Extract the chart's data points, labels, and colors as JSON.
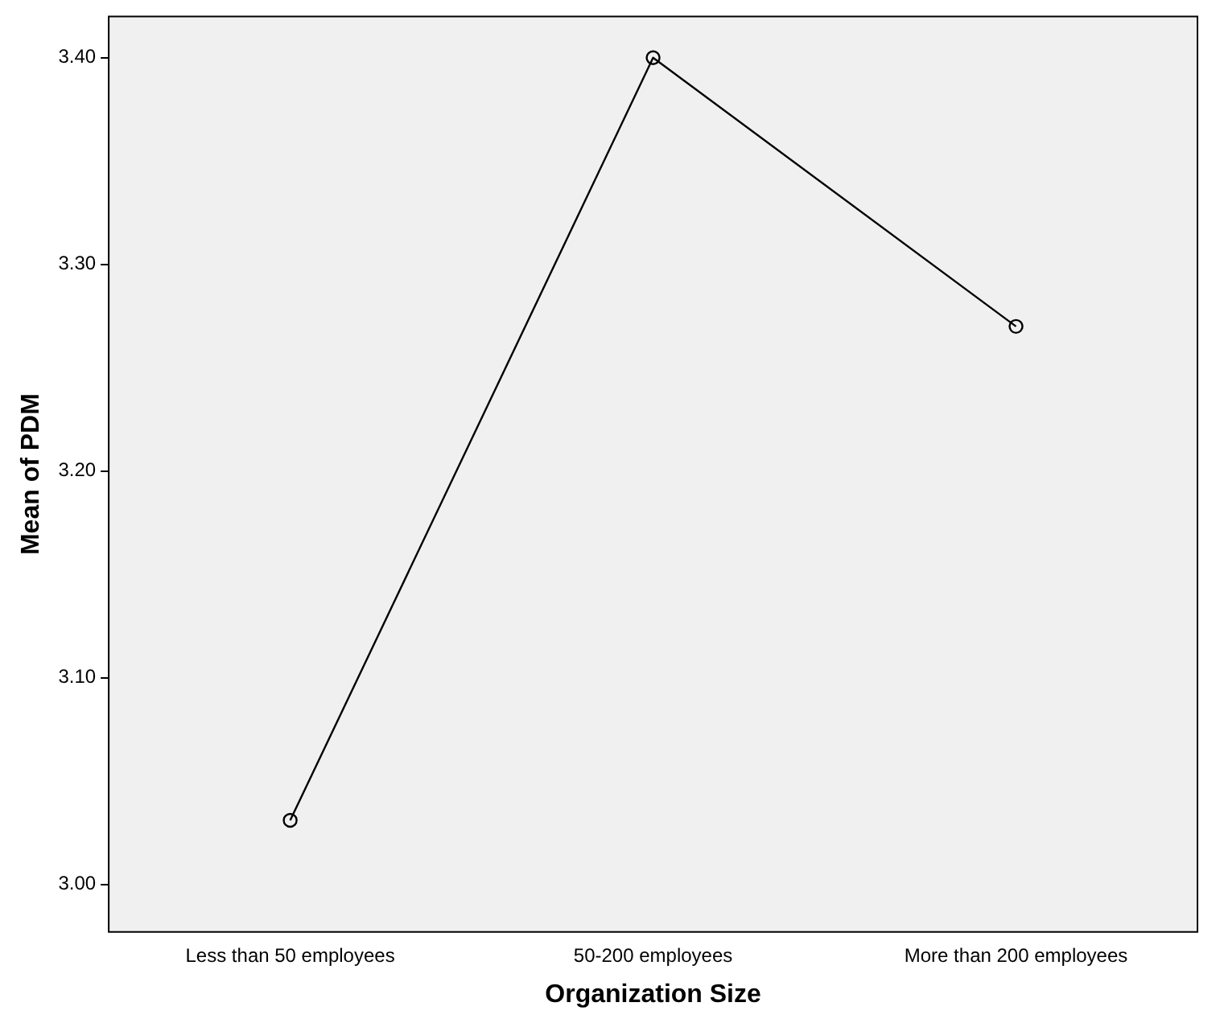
{
  "chart_data": {
    "type": "line",
    "xlabel": "Organization Size",
    "ylabel": "Mean of PDM",
    "categories": [
      "Less than 50 employees",
      "50-200 employees",
      "More than 200 employees"
    ],
    "series": [
      {
        "color": "#000000",
        "values": [
          3.031,
          3.4,
          3.27
        ]
      }
    ],
    "ylim": [
      2.977,
      3.42
    ],
    "yticks": [
      {
        "value": 3.0,
        "label": "3.00"
      },
      {
        "value": 3.1,
        "label": "3.10"
      },
      {
        "value": 3.2,
        "label": "3.20"
      },
      {
        "value": 3.3,
        "label": "3.30"
      },
      {
        "value": 3.4,
        "label": "3.40"
      }
    ],
    "grid": false,
    "legend": false,
    "marker": "circle",
    "line_style": "solid"
  }
}
